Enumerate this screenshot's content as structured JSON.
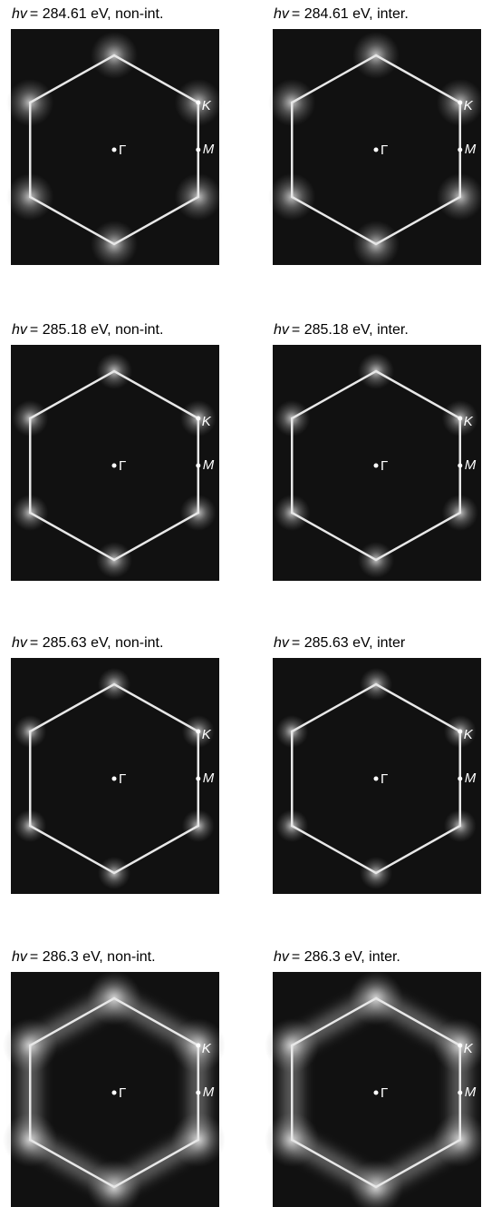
{
  "panels": [
    {
      "symbol": "hv",
      "title": "= 284.61 eV, non-int.",
      "k": "K",
      "m": "M",
      "gamma": "Γ"
    },
    {
      "symbol": "hv",
      "title": "= 284.61 eV, inter.",
      "k": "K",
      "m": "M",
      "gamma": "Γ"
    },
    {
      "symbol": "hv",
      "title": "= 285.18 eV, non-int.",
      "k": "K",
      "m": "M",
      "gamma": "Γ"
    },
    {
      "symbol": "hv",
      "title": "= 285.18 eV, inter.",
      "k": "K",
      "m": "M",
      "gamma": "Γ"
    },
    {
      "symbol": "hv",
      "title": "= 285.63 eV, non-int.",
      "k": "K",
      "m": "M",
      "gamma": "Γ"
    },
    {
      "symbol": "hv",
      "title": "= 285.63 eV, inter",
      "k": "K",
      "m": "M",
      "gamma": "Γ"
    },
    {
      "symbol": "hv",
      "title": "= 286.3 eV, non-int.",
      "k": "K",
      "m": "M",
      "gamma": "Γ"
    },
    {
      "symbol": "hv",
      "title": "= 286.3 eV, inter.",
      "k": "K",
      "m": "M",
      "gamma": "Γ"
    }
  ]
}
